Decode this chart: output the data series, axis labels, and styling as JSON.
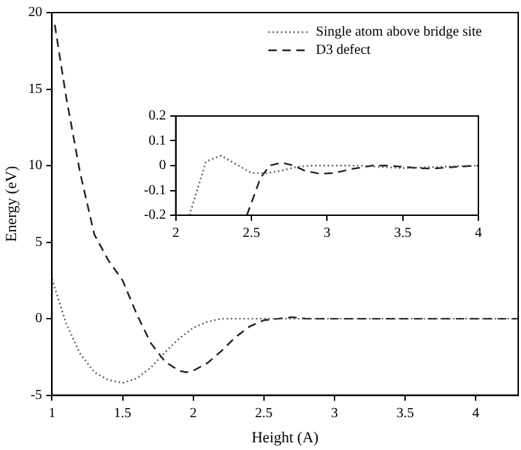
{
  "chart_data": [
    {
      "type": "line",
      "xlabel": "Height (A)",
      "ylabel": "Energy (eV)",
      "xlim": [
        1,
        4.3
      ],
      "ylim": [
        -5,
        20
      ],
      "xticks": [
        1,
        1.5,
        2,
        2.5,
        3,
        3.5,
        4
      ],
      "yticks": [
        -5,
        0,
        5,
        10,
        15,
        20
      ],
      "grid": false,
      "legend": "top right",
      "marker": "none",
      "series": [
        {
          "name": "Single atom above bridge site",
          "color": "#555555",
          "line_style": "dotted",
          "x": [
            1,
            1.1,
            1.2,
            1.3,
            1.4,
            1.5,
            1.6,
            1.7,
            1.8,
            1.9,
            2,
            2.1,
            2.2,
            2.5,
            3,
            3.5,
            4,
            4.3
          ],
          "values": [
            2.6,
            -0.3,
            -2.3,
            -3.5,
            -4,
            -4.2,
            -3.9,
            -3.2,
            -2.2,
            -1.3,
            -0.6,
            -0.2,
            0,
            0,
            0,
            0,
            0,
            0
          ]
        },
        {
          "name": "D3 defect",
          "color": "#222222",
          "line_style": "dashed",
          "x": [
            1.02,
            1.1,
            1.2,
            1.3,
            1.4,
            1.5,
            1.6,
            1.7,
            1.8,
            1.9,
            1.95,
            2,
            2.1,
            2.2,
            2.3,
            2.4,
            2.5,
            2.6,
            2.7,
            2.8,
            3,
            3.5,
            4,
            4.3
          ],
          "values": [
            19.2,
            14.5,
            9.5,
            5.5,
            3.8,
            2.5,
            0.3,
            -1.6,
            -2.8,
            -3.4,
            -3.5,
            -3.4,
            -2.9,
            -2.1,
            -1.2,
            -0.5,
            -0.1,
            0,
            0.1,
            0,
            0,
            0,
            0,
            0
          ]
        }
      ]
    },
    {
      "type": "line",
      "xlim": [
        2,
        4
      ],
      "ylim": [
        -0.2,
        0.2
      ],
      "xticks": [
        2,
        2.5,
        3,
        3.5,
        4
      ],
      "yticks": [
        -0.2,
        -0.1,
        0,
        0.1,
        0.2
      ],
      "grid": false,
      "marker": "none",
      "series": [
        {
          "color": "#555555",
          "line_style": "dotted",
          "x": [
            2.09,
            2.2,
            2.3,
            2.4,
            2.5,
            2.6,
            2.7,
            2.8,
            2.9,
            3.2,
            3.5,
            4
          ],
          "values": [
            -0.2,
            0.017,
            0.04,
            0.005,
            -0.03,
            -0.03,
            -0.02,
            -0.005,
            0,
            0,
            -0.01,
            0
          ]
        },
        {
          "color": "#222222",
          "line_style": "dashed",
          "x": [
            2.47,
            2.56,
            2.62,
            2.7,
            2.78,
            2.85,
            2.95,
            3.05,
            3.15,
            3.3,
            3.4,
            3.6,
            3.7,
            3.85,
            4
          ],
          "values": [
            -0.2,
            -0.05,
            0,
            0.012,
            0,
            -0.02,
            -0.033,
            -0.03,
            -0.015,
            0,
            0,
            -0.01,
            -0.012,
            -0.005,
            0
          ]
        }
      ]
    }
  ]
}
